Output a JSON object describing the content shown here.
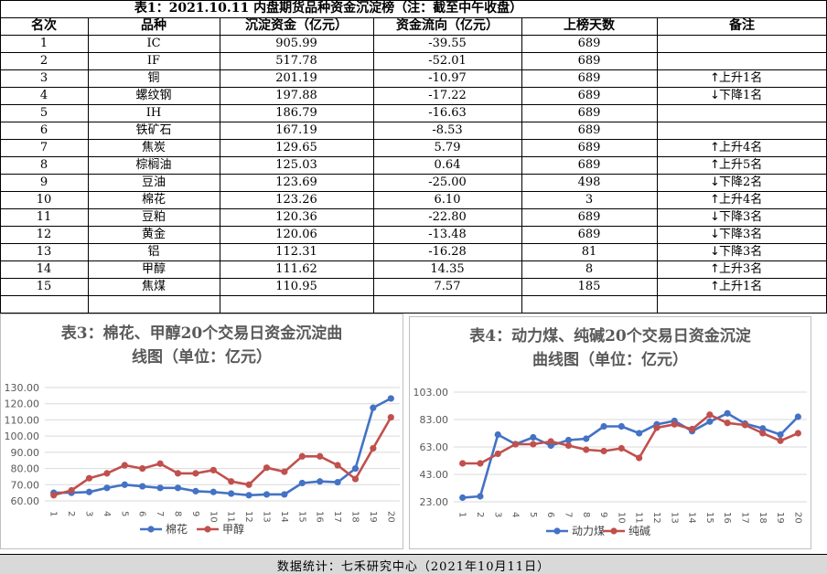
{
  "table": {
    "title": "表1：2021.10.11 内盘期货品种资金沉淀榜（注：截至中午收盘）",
    "headers": [
      "名次",
      "品种",
      "沉淀资金（亿元）",
      "资金流向（亿元）",
      "上榜天数",
      "备注"
    ],
    "rows": [
      {
        "rank": "1",
        "name": "IC",
        "fund": "905.99",
        "flow": "-39.55",
        "days": "689",
        "note": "",
        "dir": ""
      },
      {
        "rank": "2",
        "name": "IF",
        "fund": "517.78",
        "flow": "-52.01",
        "days": "689",
        "note": "",
        "dir": ""
      },
      {
        "rank": "3",
        "name": "铜",
        "fund": "201.19",
        "flow": "-10.97",
        "days": "689",
        "note": "上升1名",
        "dir": "up"
      },
      {
        "rank": "4",
        "name": "螺纹钢",
        "fund": "197.88",
        "flow": "-17.22",
        "days": "689",
        "note": "下降1名",
        "dir": "down"
      },
      {
        "rank": "5",
        "name": "IH",
        "fund": "186.79",
        "flow": "-16.63",
        "days": "689",
        "note": "",
        "dir": ""
      },
      {
        "rank": "6",
        "name": "铁矿石",
        "fund": "167.19",
        "flow": "-8.53",
        "days": "689",
        "note": "",
        "dir": ""
      },
      {
        "rank": "7",
        "name": "焦炭",
        "fund": "129.65",
        "flow": "5.79",
        "days": "689",
        "note": "上升4名",
        "dir": "up"
      },
      {
        "rank": "8",
        "name": "棕榈油",
        "fund": "125.03",
        "flow": "0.64",
        "days": "689",
        "note": "上升5名",
        "dir": "up"
      },
      {
        "rank": "9",
        "name": "豆油",
        "fund": "123.69",
        "flow": "-25.00",
        "days": "498",
        "note": "下降2名",
        "dir": "down"
      },
      {
        "rank": "10",
        "name": "棉花",
        "fund": "123.26",
        "flow": "6.10",
        "days": "3",
        "note": "上升4名",
        "dir": "up"
      },
      {
        "rank": "11",
        "name": "豆粕",
        "fund": "120.36",
        "flow": "-22.80",
        "days": "689",
        "note": "下降3名",
        "dir": "down"
      },
      {
        "rank": "12",
        "name": "黄金",
        "fund": "120.06",
        "flow": "-13.48",
        "days": "689",
        "note": "下降3名",
        "dir": "down"
      },
      {
        "rank": "13",
        "name": "铝",
        "fund": "112.31",
        "flow": "-16.28",
        "days": "81",
        "note": "下降3名",
        "dir": "down"
      },
      {
        "rank": "14",
        "name": "甲醇",
        "fund": "111.62",
        "flow": "14.35",
        "days": "8",
        "note": "上升3名",
        "dir": "up"
      },
      {
        "rank": "15",
        "name": "焦煤",
        "fund": "110.95",
        "flow": "7.57",
        "days": "185",
        "note": "上升1名",
        "dir": "up"
      }
    ],
    "arrows": {
      "up": "↑",
      "down": "↓"
    }
  },
  "chart_data": [
    {
      "type": "line",
      "title": "表3：棉花、甲醇20个交易日资金沉淀曲线图（单位：亿元）",
      "title_lines": [
        "表3：棉花、甲醇20个交易日资金沉淀曲",
        "线图（单位：亿元）"
      ],
      "x": [
        "1",
        "2",
        "3",
        "4",
        "5",
        "6",
        "7",
        "8",
        "9",
        "10",
        "11",
        "12",
        "13",
        "14",
        "15",
        "16",
        "17",
        "18",
        "19",
        "20"
      ],
      "ylim": [
        60,
        130
      ],
      "yticks": [
        "60.00",
        "70.00",
        "80.00",
        "90.00",
        "100.00",
        "110.00",
        "120.00",
        "130.00"
      ],
      "ytick_values": [
        60,
        70,
        80,
        90,
        100,
        110,
        120,
        130
      ],
      "grid": true,
      "legend_position": "bottom",
      "series": [
        {
          "name": "棉花",
          "color": "#4472c4",
          "values": [
            65,
            65,
            65.5,
            68,
            70,
            69,
            68,
            68,
            66,
            65.5,
            64.5,
            63.5,
            64,
            64,
            71,
            72,
            71.5,
            80,
            117.5,
            123.26
          ]
        },
        {
          "name": "甲醇",
          "color": "#c0504d",
          "values": [
            63.5,
            66.5,
            74,
            77,
            82,
            80,
            83,
            77,
            77,
            79,
            72,
            70,
            80.5,
            78,
            87.5,
            87.5,
            82,
            73.5,
            92.5,
            111.62
          ]
        }
      ]
    },
    {
      "type": "line",
      "title": "表4：动力煤、纯碱20个交易日资金沉淀曲线图（单位：亿元）",
      "title_lines": [
        "表4：动力煤、纯碱20个交易日资金沉淀",
        "曲线图（单位：亿元）"
      ],
      "x": [
        "1",
        "2",
        "3",
        "4",
        "5",
        "6",
        "7",
        "8",
        "9",
        "10",
        "11",
        "12",
        "13",
        "14",
        "15",
        "16",
        "17",
        "18",
        "19",
        "20"
      ],
      "ylim": [
        23,
        103
      ],
      "yticks": [
        "23.00",
        "43.00",
        "63.00",
        "83.00",
        "103.00"
      ],
      "ytick_values": [
        23,
        43,
        63,
        83,
        103
      ],
      "grid": true,
      "legend_position": "bottom",
      "series": [
        {
          "name": "动力煤",
          "color": "#4472c4",
          "values": [
            26,
            27,
            72,
            65,
            70,
            64,
            68,
            69,
            78,
            78,
            73,
            79.5,
            82,
            74.5,
            81.5,
            87.5,
            80,
            76.5,
            72,
            85
          ]
        },
        {
          "name": "纯碱",
          "color": "#c0504d",
          "values": [
            51,
            51,
            58,
            65,
            65,
            67,
            64,
            61,
            60,
            62,
            55,
            77,
            79.5,
            76,
            86.5,
            80.5,
            79,
            73,
            67.5,
            73
          ]
        }
      ]
    }
  ],
  "footer": {
    "text": "数据统计：七禾研究中心（2021年10月11日）"
  }
}
